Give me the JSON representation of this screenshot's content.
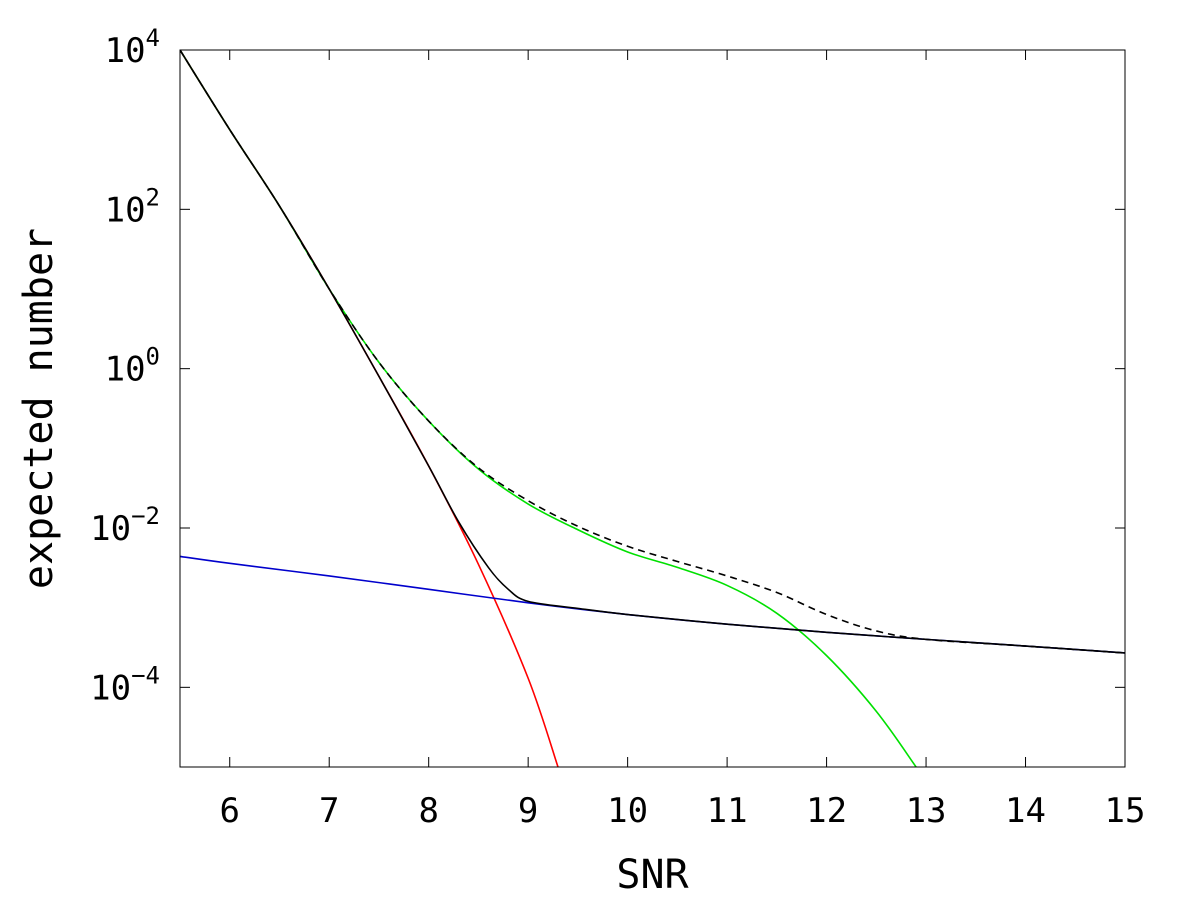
{
  "chart_data": {
    "type": "line",
    "title": "",
    "xlabel": "SNR",
    "ylabel": "expected number",
    "xlim": [
      5.5,
      15
    ],
    "ylim": [
      1e-05,
      10000
    ],
    "yscale": "log",
    "grid": false,
    "legend": "none",
    "x_ticks": [
      {
        "value": 6,
        "label": "6"
      },
      {
        "value": 7,
        "label": "7"
      },
      {
        "value": 8,
        "label": "8"
      },
      {
        "value": 9,
        "label": "9"
      },
      {
        "value": 10,
        "label": "10"
      },
      {
        "value": 11,
        "label": "11"
      },
      {
        "value": 12,
        "label": "12"
      },
      {
        "value": 13,
        "label": "13"
      },
      {
        "value": 14,
        "label": "14"
      },
      {
        "value": 15,
        "label": "15"
      }
    ],
    "y_ticks": [
      {
        "value": 10000,
        "base": "10",
        "exp": "4"
      },
      {
        "value": 100,
        "base": "10",
        "exp": "2"
      },
      {
        "value": 1,
        "base": "10",
        "exp": "0"
      },
      {
        "value": 0.01,
        "base": "10",
        "exp": "−2"
      },
      {
        "value": 0.0001,
        "base": "10",
        "exp": "−4"
      }
    ],
    "series": [
      {
        "color": "#ff0000",
        "dashed": false,
        "x": [
          5.5,
          6,
          6.5,
          7,
          7.5,
          8,
          8.5,
          9,
          9.3
        ],
        "y": [
          10000,
          1000,
          110,
          10,
          0.8,
          0.06,
          0.0035,
          0.00013,
          1e-05
        ]
      },
      {
        "color": "#0000cc",
        "dashed": false,
        "x": [
          5.5,
          6,
          7,
          8,
          9,
          10,
          11,
          12,
          13,
          14,
          15
        ],
        "y": [
          0.0044,
          0.0036,
          0.0025,
          0.0017,
          0.00115,
          0.00082,
          0.00062,
          0.00049,
          0.0004,
          0.00033,
          0.00027
        ]
      },
      {
        "color": "#00e000",
        "dashed": false,
        "x": [
          5.5,
          6,
          6.5,
          7,
          7.5,
          8,
          8.5,
          9,
          9.5,
          10,
          10.5,
          11,
          11.5,
          12,
          12.5,
          12.9
        ],
        "y": [
          10000,
          1000,
          110,
          10,
          1.2,
          0.22,
          0.055,
          0.02,
          0.0095,
          0.005,
          0.0032,
          0.0019,
          0.00085,
          0.00025,
          5e-05,
          1e-05
        ]
      },
      {
        "color": "#000000",
        "dashed": false,
        "x": [
          5.5,
          6,
          6.5,
          7,
          7.5,
          8,
          8.3,
          8.6,
          8.8,
          9,
          9.5,
          10,
          11,
          12,
          13,
          14,
          15
        ],
        "y": [
          10000,
          1000,
          110,
          10,
          0.8,
          0.06,
          0.012,
          0.0032,
          0.0017,
          0.0012,
          0.00098,
          0.00082,
          0.00062,
          0.00049,
          0.0004,
          0.00033,
          0.00027
        ]
      },
      {
        "color": "#000000",
        "dashed": true,
        "x": [
          5.5,
          6,
          6.5,
          7,
          7.5,
          8,
          8.5,
          9,
          9.5,
          10,
          10.5,
          11,
          11.5,
          12,
          12.5,
          13,
          14,
          15
        ],
        "y": [
          10000,
          1000,
          110,
          10,
          1.2,
          0.22,
          0.057,
          0.022,
          0.0105,
          0.0059,
          0.0038,
          0.0025,
          0.00155,
          0.00082,
          0.00051,
          0.0004,
          0.00033,
          0.00027
        ]
      }
    ]
  }
}
